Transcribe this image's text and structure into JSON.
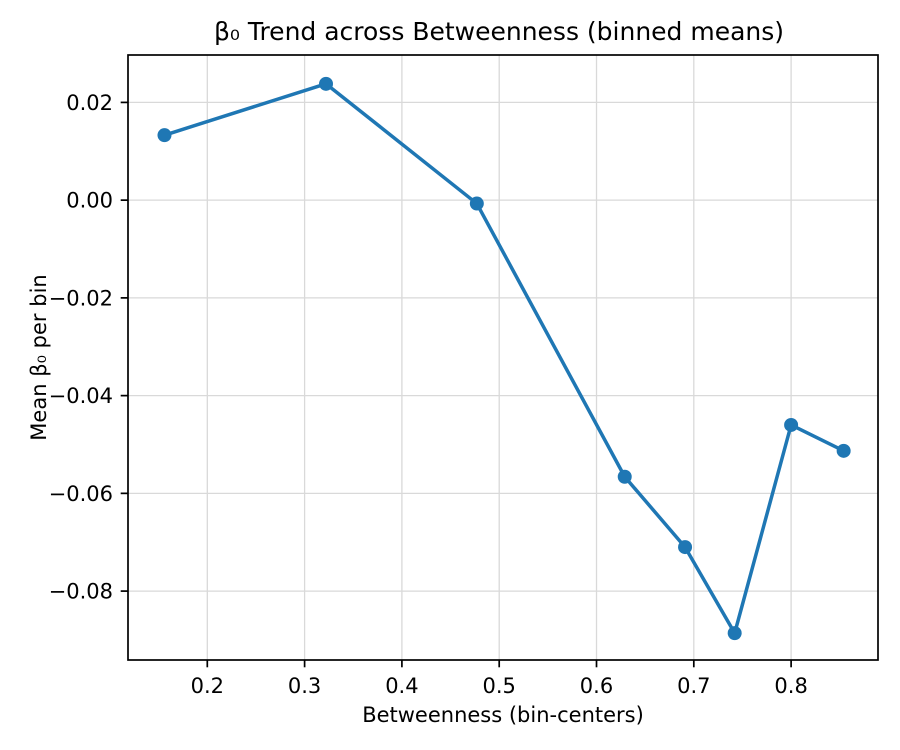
{
  "figure": {
    "background": "#ffffff"
  },
  "chart_data": {
    "type": "line",
    "title": "β₀ Trend across Betweenness (binned means)",
    "xlabel": "Betweenness (bin-centers)",
    "ylabel": "Mean β₀ per bin",
    "series": [
      {
        "x": [
          0.156,
          0.322,
          0.477,
          0.629,
          0.691,
          0.742,
          0.8,
          0.854
        ],
        "y": [
          0.0133,
          0.0238,
          -0.0007,
          -0.0566,
          -0.071,
          -0.0886,
          -0.046,
          -0.0513
        ],
        "color": "#1f77b4",
        "marker": "circle",
        "marker_radius": 7,
        "line_width": 3.5
      }
    ],
    "xlim": [
      0.1185,
      0.8893
    ],
    "ylim": [
      -0.0941,
      0.0297
    ],
    "xticks": [
      0.2,
      0.3,
      0.4,
      0.5,
      0.6,
      0.7,
      0.8
    ],
    "xtick_labels": [
      "0.2",
      "0.3",
      "0.4",
      "0.5",
      "0.6",
      "0.7",
      "0.8"
    ],
    "yticks": [
      0.02,
      0.0,
      -0.02,
      -0.04,
      -0.06,
      -0.08
    ],
    "ytick_labels": [
      "0.02",
      "0.00",
      "−0.02",
      "−0.04",
      "−0.06",
      "−0.08"
    ],
    "grid": true,
    "grid_color": "#d9d9d9",
    "axis_color": "#000000",
    "text_color": "#000000",
    "legend": null
  }
}
